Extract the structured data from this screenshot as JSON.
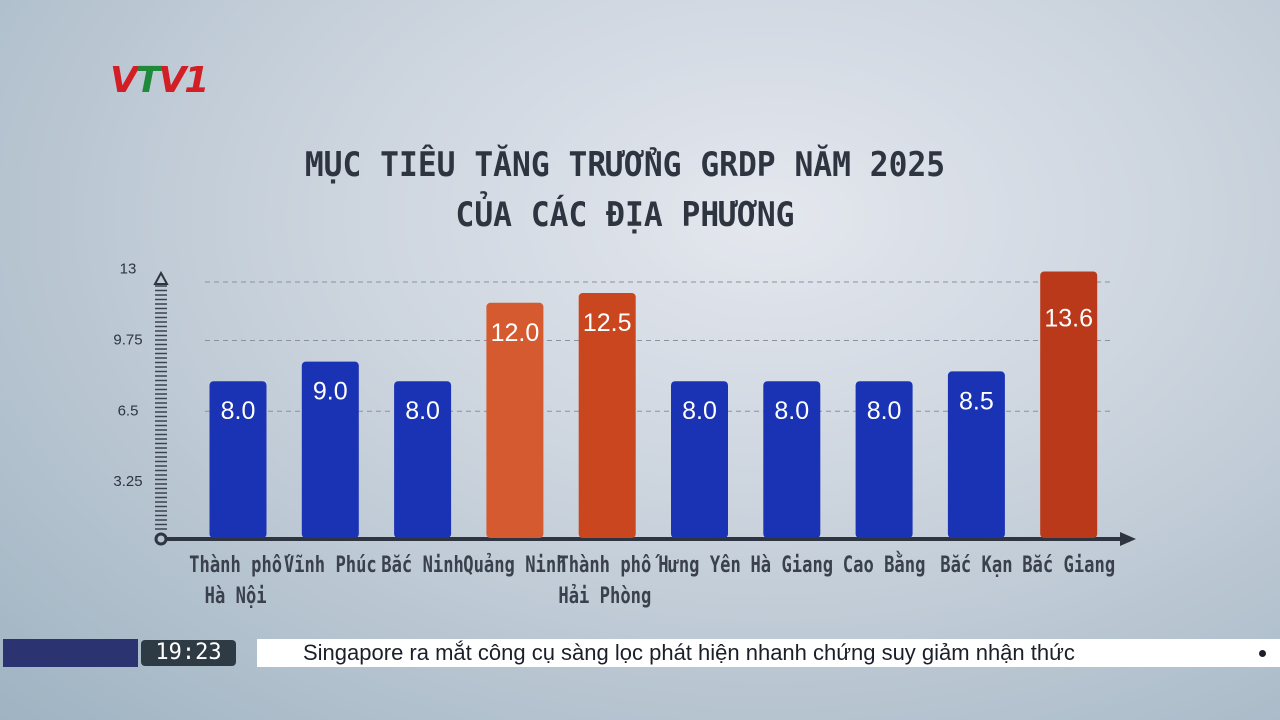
{
  "channel_logo": "VTV1",
  "chart_data": {
    "type": "bar",
    "title": "MỤC TIÊU TĂNG TRƯỞNG GRDP NĂM 2025",
    "subtitle": "CỦA CÁC ĐỊA PHƯƠNG",
    "categories": [
      [
        "Thành phố",
        "Hà Nội"
      ],
      [
        "Vĩnh Phúc"
      ],
      [
        "Bắc Ninh"
      ],
      [
        "Quảng Ninh"
      ],
      [
        "Thành phố",
        "Hải Phòng"
      ],
      [
        "Hưng Yên"
      ],
      [
        "Hà Giang"
      ],
      [
        "Cao Bằng"
      ],
      [
        "Bắc Kạn"
      ],
      [
        "Bắc Giang"
      ]
    ],
    "values": [
      8.0,
      9.0,
      8.0,
      12.0,
      12.5,
      8.0,
      8.0,
      8.0,
      8.5,
      13.6
    ],
    "value_labels": [
      "8.0",
      "9.0",
      "8.0",
      "12.0",
      "12.5",
      "8.0",
      "8.0",
      "8.0",
      "8.5",
      "13.6"
    ],
    "colors": [
      "#1a33b5",
      "#1a33b5",
      "#1a33b5",
      "#d65a2f",
      "#c9461f",
      "#1a33b5",
      "#1a33b5",
      "#1a33b5",
      "#1a33b5",
      "#b9391a"
    ],
    "yticks": [
      "13",
      "9.75",
      "6.5",
      "3.25"
    ],
    "ytick_values": [
      13,
      9.75,
      6.5,
      3.25
    ],
    "ylim": [
      0,
      13
    ],
    "grid": true
  },
  "ticker": {
    "time": "19:23",
    "headline": "Singapore ra mắt công cụ sàng lọc phát hiện nhanh chứng suy giảm nhận thức"
  }
}
